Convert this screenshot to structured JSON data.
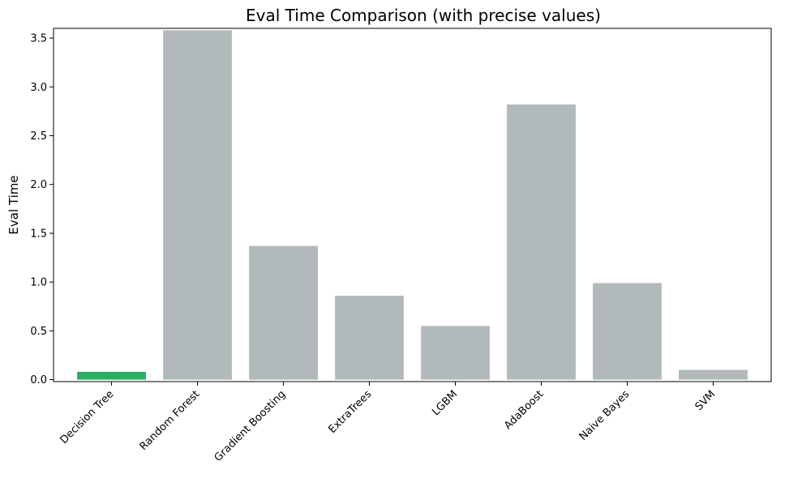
{
  "chart_data": {
    "type": "bar",
    "title": "Eval Time Comparison (with precise values)",
    "xlabel": "",
    "ylabel": "Eval Time",
    "categories": [
      "Decision Tree",
      "Random Forest",
      "Gradient Boosting",
      "ExtraTrees",
      "LGBM",
      "AdaBoost",
      "Naive Bayes",
      "SVM"
    ],
    "values": [
      0.08,
      3.58,
      1.37,
      0.86,
      0.55,
      2.82,
      0.99,
      0.1
    ],
    "ylim": [
      -0.02,
      3.6
    ],
    "yticks": [
      0.0,
      0.5,
      1.0,
      1.5,
      2.0,
      2.5,
      3.0,
      3.5
    ],
    "ytick_labels": [
      "0.0",
      "0.5",
      "1.0",
      "1.5",
      "2.0",
      "2.5",
      "3.0",
      "3.5"
    ],
    "grid": false,
    "colors": {
      "highlight": "#27ae60",
      "default": "#b2b9bb"
    },
    "highlight_index": 0
  }
}
